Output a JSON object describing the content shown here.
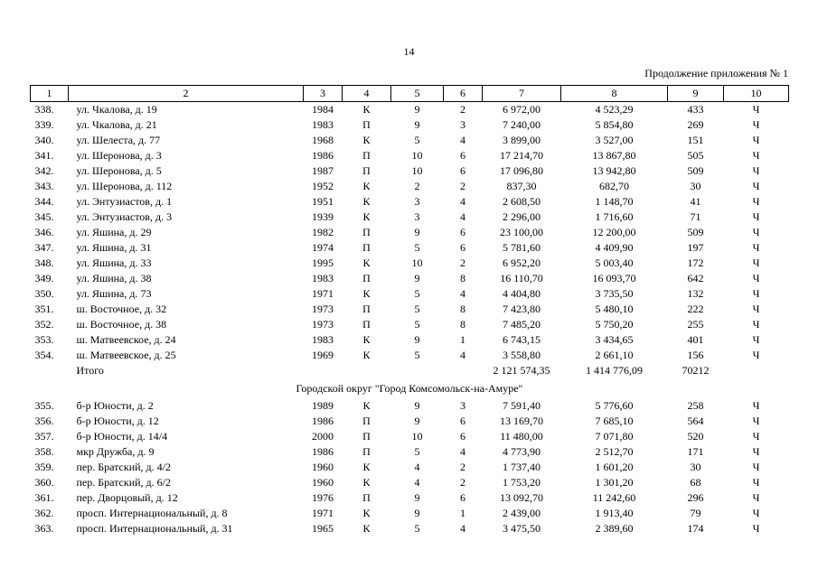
{
  "page": {
    "number": "14",
    "continuation_note": "Продолжение приложения № 1"
  },
  "table": {
    "column_numbers": [
      "1",
      "2",
      "3",
      "4",
      "5",
      "6",
      "7",
      "8",
      "9",
      "10"
    ],
    "rows": [
      {
        "type": "data",
        "cells": [
          "338.",
          "ул. Чкалова, д. 19",
          "1984",
          "К",
          "9",
          "2",
          "6 972,00",
          "4 523,29",
          "433",
          "Ч"
        ]
      },
      {
        "type": "data",
        "cells": [
          "339.",
          "ул. Чкалова, д. 21",
          "1983",
          "П",
          "9",
          "3",
          "7 240,00",
          "5 854,80",
          "269",
          "Ч"
        ]
      },
      {
        "type": "data",
        "cells": [
          "340.",
          "ул. Шелеста, д. 77",
          "1968",
          "К",
          "5",
          "4",
          "3 899,00",
          "3 527,00",
          "151",
          "Ч"
        ]
      },
      {
        "type": "data",
        "cells": [
          "341.",
          "ул. Шеронова, д. 3",
          "1986",
          "П",
          "10",
          "6",
          "17 214,70",
          "13 867,80",
          "505",
          "Ч"
        ]
      },
      {
        "type": "data",
        "cells": [
          "342.",
          "ул. Шеронова, д. 5",
          "1987",
          "П",
          "10",
          "6",
          "17 096,80",
          "13 942,80",
          "509",
          "Ч"
        ]
      },
      {
        "type": "data",
        "cells": [
          "343.",
          "ул. Шеронова, д. 112",
          "1952",
          "К",
          "2",
          "2",
          "837,30",
          "682,70",
          "30",
          "Ч"
        ]
      },
      {
        "type": "data",
        "cells": [
          "344.",
          "ул. Энтузиастов, д. 1",
          "1951",
          "К",
          "3",
          "4",
          "2 608,50",
          "1 148,70",
          "41",
          "Ч"
        ]
      },
      {
        "type": "data",
        "cells": [
          "345.",
          "ул. Энтузиастов, д. 3",
          "1939",
          "К",
          "3",
          "4",
          "2 296,00",
          "1 716,60",
          "71",
          "Ч"
        ]
      },
      {
        "type": "data",
        "cells": [
          "346.",
          "ул. Яшина, д. 29",
          "1982",
          "П",
          "9",
          "6",
          "23 100,00",
          "12 200,00",
          "509",
          "Ч"
        ]
      },
      {
        "type": "data",
        "cells": [
          "347.",
          "ул. Яшина, д. 31",
          "1974",
          "П",
          "5",
          "6",
          "5 781,60",
          "4 409,90",
          "197",
          "Ч"
        ]
      },
      {
        "type": "data",
        "cells": [
          "348.",
          "ул. Яшина, д. 33",
          "1995",
          "К",
          "10",
          "2",
          "6 952,20",
          "5 003,40",
          "172",
          "Ч"
        ]
      },
      {
        "type": "data",
        "cells": [
          "349.",
          "ул. Яшина, д. 38",
          "1983",
          "П",
          "9",
          "8",
          "16 110,70",
          "16 093,70",
          "642",
          "Ч"
        ]
      },
      {
        "type": "data",
        "cells": [
          "350.",
          "ул. Яшина, д. 73",
          "1971",
          "К",
          "5",
          "4",
          "4 404,80",
          "3 735,50",
          "132",
          "Ч"
        ]
      },
      {
        "type": "data",
        "cells": [
          "351.",
          "ш. Восточное, д. 32",
          "1973",
          "П",
          "5",
          "8",
          "7 423,80",
          "5 480,10",
          "222",
          "Ч"
        ]
      },
      {
        "type": "data",
        "cells": [
          "352.",
          "ш. Восточное, д. 38",
          "1973",
          "П",
          "5",
          "8",
          "7 485,20",
          "5 750,20",
          "255",
          "Ч"
        ]
      },
      {
        "type": "data",
        "cells": [
          "353.",
          "ш. Матвеевское, д. 24",
          "1983",
          "К",
          "9",
          "1",
          "6 743,15",
          "3 434,65",
          "401",
          "Ч"
        ]
      },
      {
        "type": "data",
        "cells": [
          "354.",
          "ш. Матвеевское, д. 25",
          "1969",
          "К",
          "5",
          "4",
          "3 558,80",
          "2 661,10",
          "156",
          "Ч"
        ]
      },
      {
        "type": "totals",
        "cells": [
          "",
          "Итого",
          "",
          "",
          "",
          "",
          "2 121 574,35",
          "1 414 776,09",
          "70212",
          ""
        ]
      },
      {
        "type": "section",
        "title": "Городской округ \"Город Комсомольск-на-Амуре\""
      },
      {
        "type": "data",
        "cells": [
          "355.",
          "б-р Юности, д. 2",
          "1989",
          "К",
          "9",
          "3",
          "7 591,40",
          "5 776,60",
          "258",
          "Ч"
        ]
      },
      {
        "type": "data",
        "cells": [
          "356.",
          "б-р Юности, д. 12",
          "1986",
          "П",
          "9",
          "6",
          "13 169,70",
          "7 685,10",
          "564",
          "Ч"
        ]
      },
      {
        "type": "data",
        "cells": [
          "357.",
          "б-р Юности, д. 14/4",
          "2000",
          "П",
          "10",
          "6",
          "11 480,00",
          "7 071,80",
          "520",
          "Ч"
        ]
      },
      {
        "type": "data",
        "cells": [
          "358.",
          "мкр Дружба, д. 9",
          "1986",
          "П",
          "5",
          "4",
          "4 773,90",
          "2 512,70",
          "171",
          "Ч"
        ]
      },
      {
        "type": "data",
        "cells": [
          "359.",
          "пер. Братский, д. 4/2",
          "1960",
          "К",
          "4",
          "2",
          "1 737,40",
          "1 601,20",
          "30",
          "Ч"
        ]
      },
      {
        "type": "data",
        "cells": [
          "360.",
          "пер. Братский, д. 6/2",
          "1960",
          "К",
          "4",
          "2",
          "1 753,20",
          "1 301,20",
          "68",
          "Ч"
        ]
      },
      {
        "type": "data",
        "cells": [
          "361.",
          "пер. Дворцовый, д. 12",
          "1976",
          "П",
          "9",
          "6",
          "13 092,70",
          "11 242,60",
          "296",
          "Ч"
        ]
      },
      {
        "type": "data",
        "cells": [
          "362.",
          "просп. Интернациональный, д. 8",
          "1971",
          "К",
          "9",
          "1",
          "2 439,00",
          "1 913,40",
          "79",
          "Ч"
        ]
      },
      {
        "type": "data",
        "cells": [
          "363.",
          "просп. Интернациональный, д. 31",
          "1965",
          "К",
          "5",
          "4",
          "3 475,50",
          "2 389,60",
          "174",
          "Ч"
        ]
      }
    ]
  }
}
